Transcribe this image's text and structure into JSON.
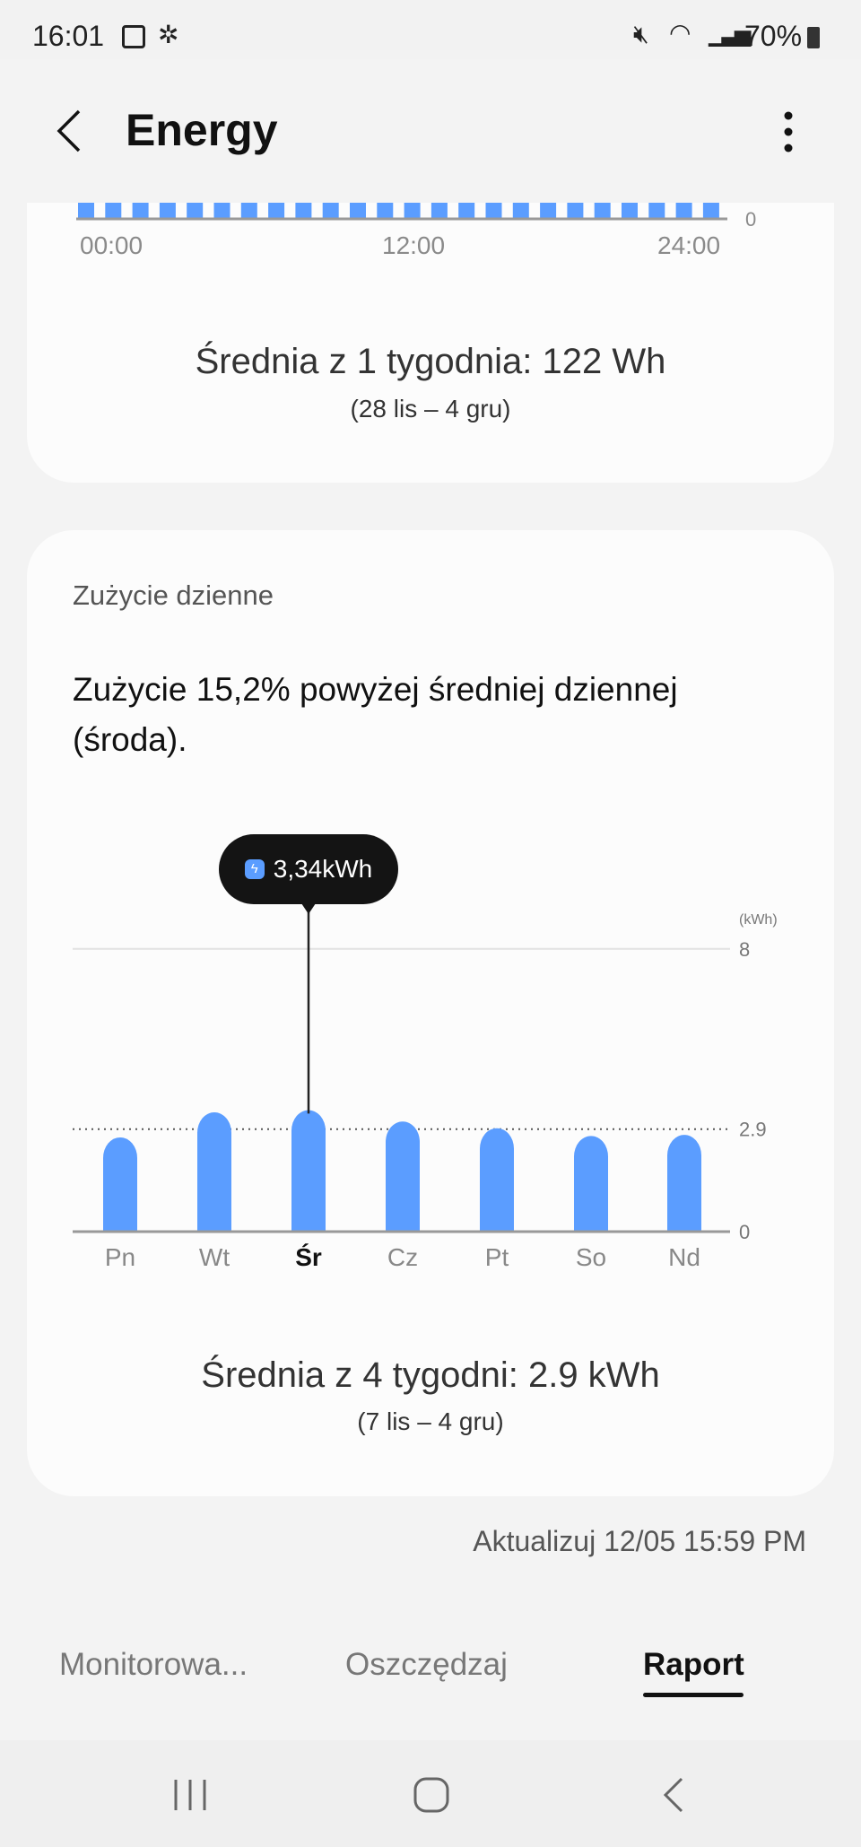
{
  "status_bar": {
    "time": "16:01",
    "battery": "70%",
    "icons": [
      "image-icon",
      "network-hub-icon",
      "mute-icon",
      "wifi-icon",
      "signal-icon",
      "battery-icon"
    ]
  },
  "app_bar": {
    "title": "Energy",
    "back_icon": "chevron-left-icon",
    "menu_icon": "more-vertical-icon"
  },
  "hourly_card": {
    "axis_labels": [
      "00:00",
      "12:00",
      "24:00"
    ],
    "y_zero": "0",
    "average": "Średnia z 1 tygodnia: 122 Wh",
    "range": "(28 lis – 4 gru)"
  },
  "daily_card": {
    "title": "Zużycie dzienne",
    "headline": "Zużycie 15,2% powyżej średniej dziennej (środa).",
    "tooltip": "3,34kWh",
    "average": "Średnia z 4 tygodni: 2.9 kWh",
    "range": "(7 lis – 4 gru)"
  },
  "chart_data": [
    {
      "type": "bar",
      "title": "",
      "categories": [
        "00:00",
        "12:00",
        "24:00"
      ],
      "bar_count": 24,
      "note_values": "all bars at minimum level",
      "ylim": [
        0,
        null
      ],
      "color": "#5b9dff"
    },
    {
      "type": "bar",
      "categories": [
        "Pn",
        "Wt",
        "Śr",
        "Cz",
        "Pt",
        "So",
        "Nd"
      ],
      "values": [
        2.57,
        3.28,
        3.34,
        3.02,
        2.83,
        2.61,
        2.64
      ],
      "selected": "Śr",
      "unit": "(kWh)",
      "yticks": [
        "0",
        "2.9",
        "8"
      ],
      "ylim": [
        0,
        8
      ],
      "average_line": 2.9,
      "color": "#5b9dff"
    }
  ],
  "update_text": "Aktualizuj 12/05 15:59 PM",
  "tabs": [
    {
      "label": "Monitorowa..."
    },
    {
      "label": "Oszczędzaj"
    },
    {
      "label": "Raport",
      "active": true
    }
  ],
  "nav": {
    "icons": [
      "recent-apps-icon",
      "home-icon",
      "back-icon"
    ]
  }
}
